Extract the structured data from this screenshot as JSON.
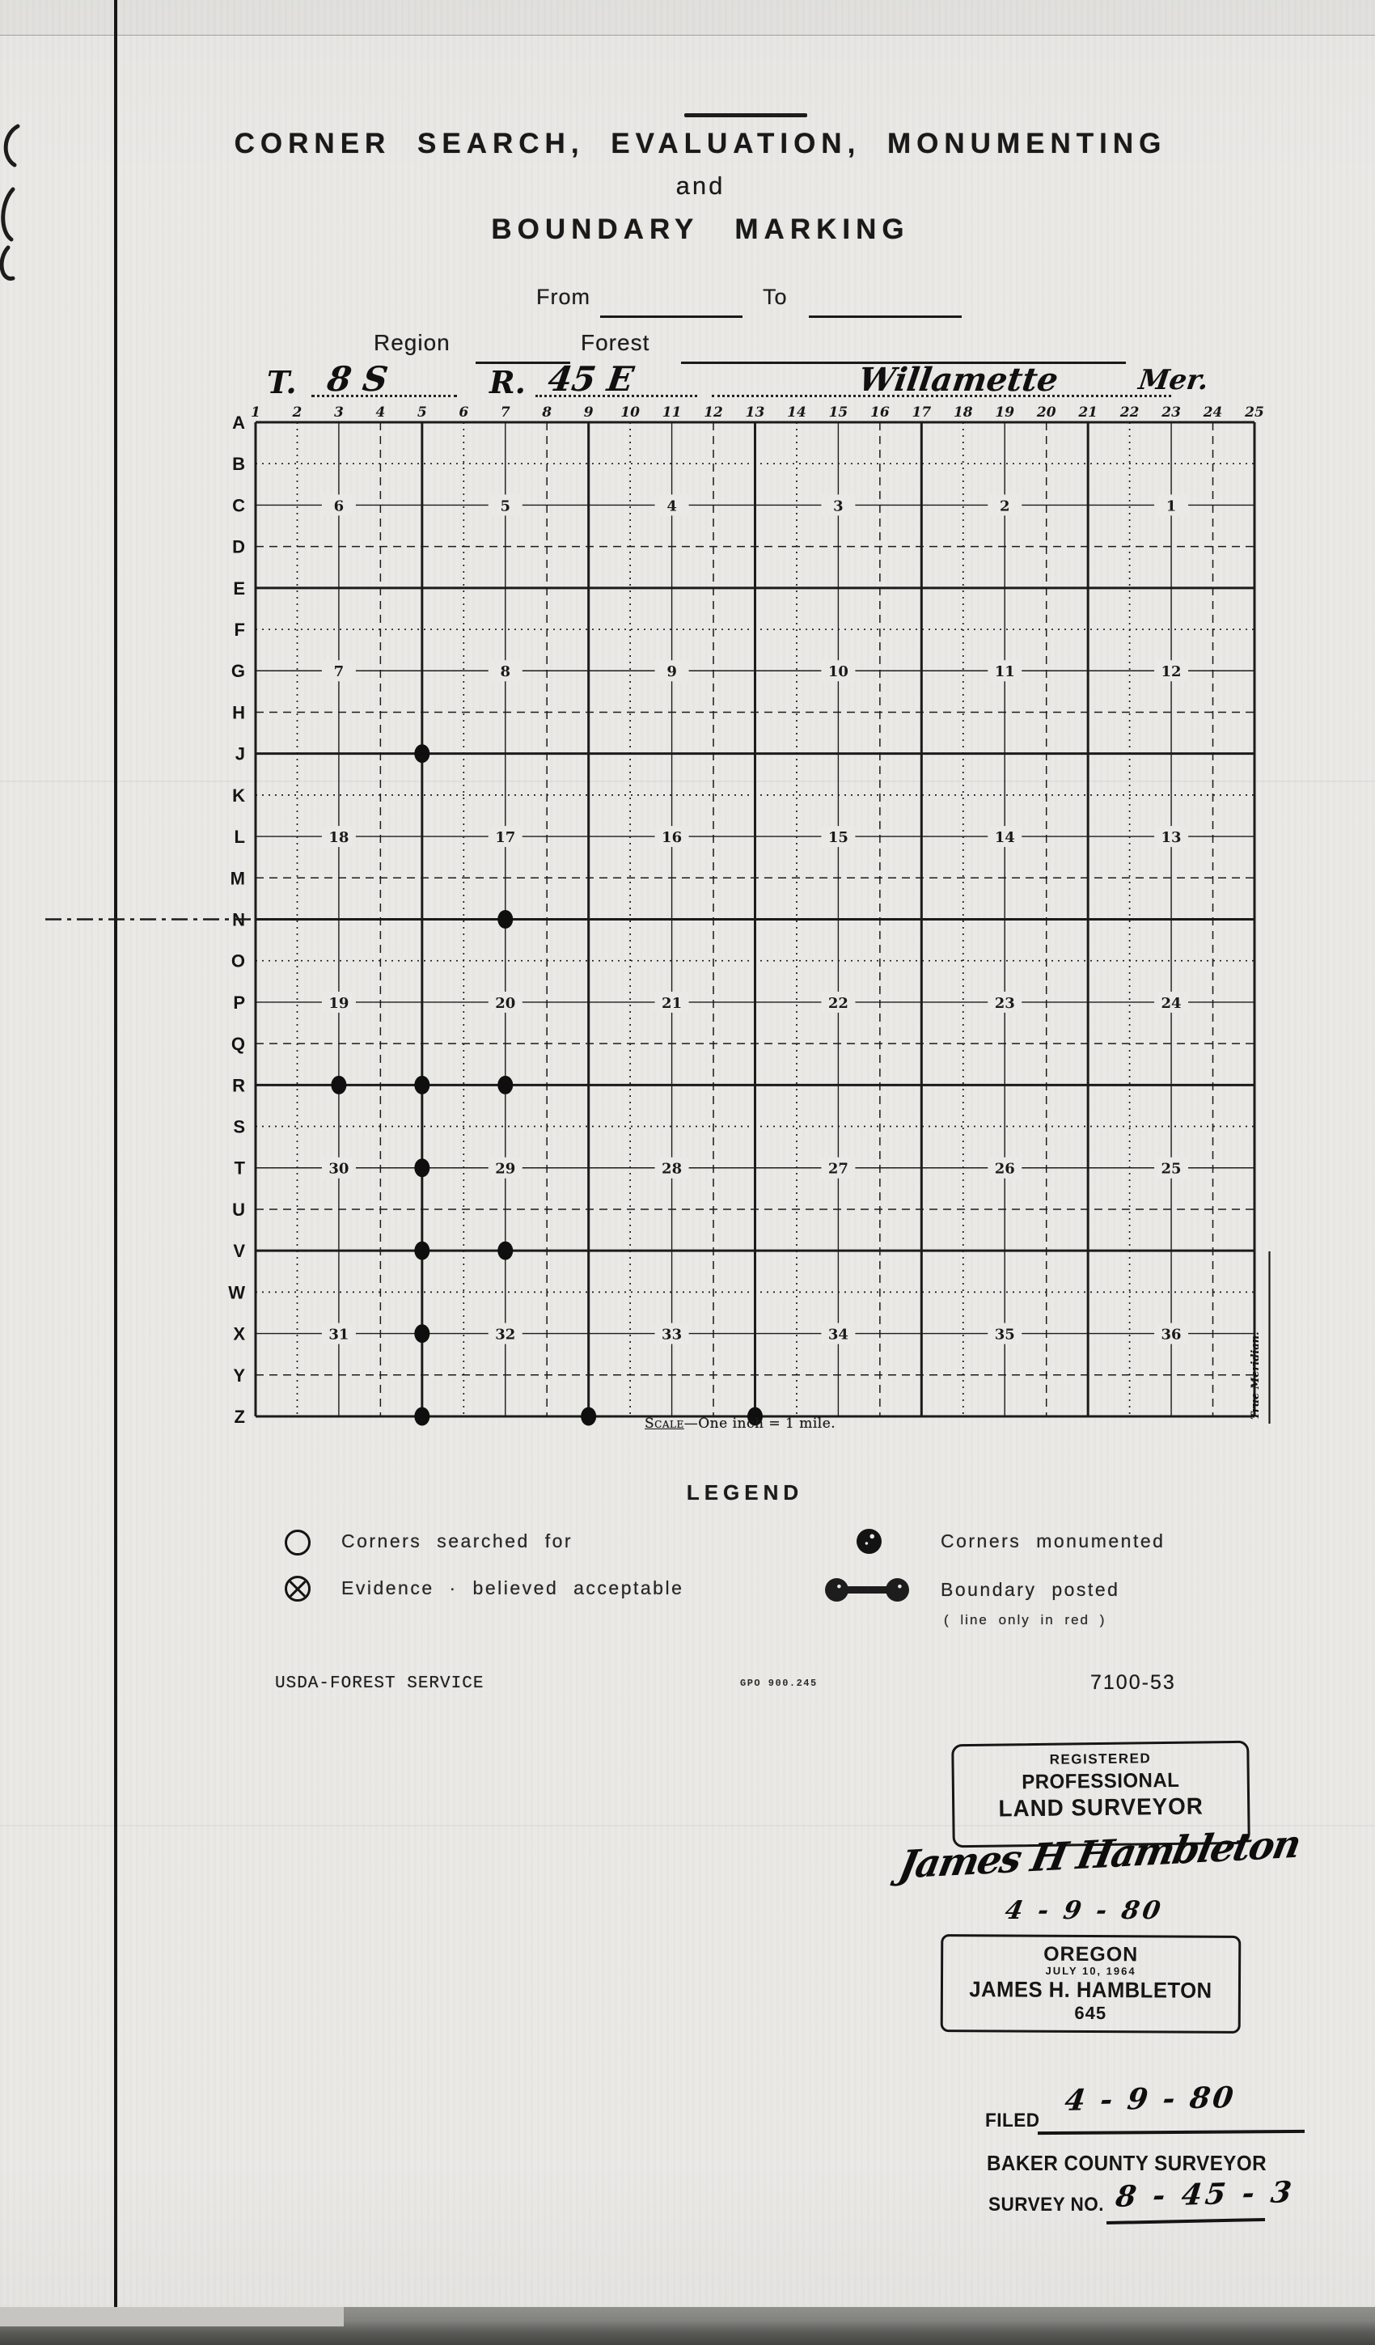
{
  "header": {
    "title_line1": "CORNER  SEARCH,  EVALUATION,  MONUMENTING",
    "title_line2": "and",
    "title_line3": "BOUNDARY  MARKING",
    "from_label": "From",
    "to_label": "To",
    "region_label": "Region",
    "forest_label": "Forest"
  },
  "township": {
    "t_label": "T.",
    "t_value": "8 S",
    "r_label": "R.",
    "r_value": "45 E",
    "meridian_value": "Willamette",
    "meridian_abbr": "Mer."
  },
  "grid": {
    "column_numbers": [
      "1",
      "2",
      "3",
      "4",
      "5",
      "6",
      "7",
      "8",
      "9",
      "10",
      "11",
      "12",
      "13",
      "14",
      "15",
      "16",
      "17",
      "18",
      "19",
      "20",
      "21",
      "22",
      "23",
      "24",
      "25"
    ],
    "row_letters": [
      "A",
      "B",
      "C",
      "D",
      "E",
      "F",
      "G",
      "H",
      "J",
      "K",
      "L",
      "M",
      "N",
      "O",
      "P",
      "Q",
      "R",
      "S",
      "T",
      "U",
      "V",
      "W",
      "X",
      "Y",
      "Z"
    ],
    "section_number_columns": [
      3,
      7,
      11,
      15,
      19,
      23
    ],
    "section_rows": [
      {
        "row": "C",
        "numbers": [
          "6",
          "5",
          "4",
          "3",
          "2",
          "1"
        ]
      },
      {
        "row": "G",
        "numbers": [
          "7",
          "8",
          "9",
          "10",
          "11",
          "12"
        ]
      },
      {
        "row": "L",
        "numbers": [
          "18",
          "17",
          "16",
          "15",
          "14",
          "13"
        ]
      },
      {
        "row": "P",
        "numbers": [
          "19",
          "20",
          "21",
          "22",
          "23",
          "24"
        ]
      },
      {
        "row": "T",
        "numbers": [
          "30",
          "29",
          "28",
          "27",
          "26",
          "25"
        ]
      },
      {
        "row": "X",
        "numbers": [
          "31",
          "32",
          "33",
          "34",
          "35",
          "36"
        ]
      }
    ],
    "monumented_corners": [
      {
        "row": "J",
        "col": 5
      },
      {
        "row": "N",
        "col": 7
      },
      {
        "row": "R",
        "col": 3
      },
      {
        "row": "R",
        "col": 5
      },
      {
        "row": "R",
        "col": 7
      },
      {
        "row": "T",
        "col": 5
      },
      {
        "row": "V",
        "col": 5
      },
      {
        "row": "V",
        "col": 7
      },
      {
        "row": "X",
        "col": 5
      },
      {
        "row": "Z",
        "col": 5
      },
      {
        "row": "Z",
        "col": 9
      },
      {
        "row": "Z",
        "col": 13
      }
    ],
    "right_edge_label": "True Meridian.",
    "scale_label": "Scale",
    "scale_text": "—One inch = 1 mile."
  },
  "legend": {
    "title": "LEGEND",
    "searched": {
      "symbol": "open-circle",
      "label": "Corners  searched  for"
    },
    "evidence": {
      "symbol": "circle-x",
      "label": "Evidence · believed  acceptable"
    },
    "monumented": {
      "symbol": "filled-circle",
      "label": "Corners  monumented"
    },
    "boundary": {
      "symbol": "dumbbell",
      "label": "Boundary  posted",
      "sublabel": "( line  only  in  red )"
    }
  },
  "footer": {
    "agency": "USDA-FOREST SERVICE",
    "gpo": "GPO 900.245",
    "form_number": "7100-53"
  },
  "stamps": {
    "registered": {
      "line1": "REGISTERED",
      "line2": "PROFESSIONAL",
      "line3": "LAND SURVEYOR"
    },
    "signature": "James H Hambleton",
    "signature_date": "4 - 9 - 80",
    "oregon": {
      "line1": "OREGON",
      "line2": "JULY 10, 1964",
      "line3": "JAMES H. HAMBLETON",
      "line4": "645"
    }
  },
  "filing": {
    "filed_label": "FILED",
    "filed_date": "4 - 9 - 80",
    "office": "BAKER COUNTY SURVEYOR",
    "survey_no_label": "SURVEY NO.",
    "survey_no_value": "8 - 45 - 3"
  }
}
